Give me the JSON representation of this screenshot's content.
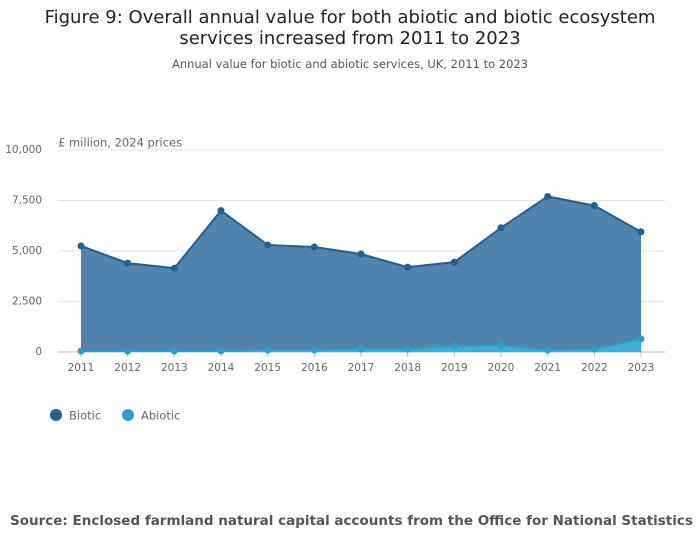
{
  "chart_data": {
    "type": "area",
    "title": "Figure 9: Overall annual value for both abiotic and biotic ecosystem services increased from 2011 to 2023",
    "subtitle": "Annual value for biotic and abiotic services, UK, 2011 to 2023",
    "y_label": "£ million, 2024 prices",
    "categories": [
      "2011",
      "2012",
      "2013",
      "2014",
      "2015",
      "2016",
      "2017",
      "2018",
      "2019",
      "2020",
      "2021",
      "2022",
      "2023"
    ],
    "series": [
      {
        "name": "Biotic",
        "color": "#206095",
        "fill": "#5084ad",
        "values": [
          5250,
          4400,
          4150,
          7000,
          5300,
          5200,
          4850,
          4200,
          4450,
          6150,
          7700,
          7250,
          5950
        ]
      },
      {
        "name": "Abiotic",
        "color": "#27a0cc",
        "fill": "#3fadd6",
        "values": [
          50,
          50,
          50,
          50,
          100,
          100,
          150,
          150,
          300,
          350,
          100,
          150,
          650
        ]
      }
    ],
    "ylim": [
      0,
      10000
    ],
    "yticks": [
      0,
      {
        "value": 2500,
        "label": "2,500"
      },
      {
        "value": 5000,
        "label": "5,000"
      },
      {
        "value": 7500,
        "label": "7,500"
      },
      {
        "value": 10000,
        "label": "10,000"
      }
    ],
    "grid": true,
    "legend": "bottom-left",
    "source": "Source: Enclosed farmland natural capital accounts from the Office for National Statistics"
  }
}
